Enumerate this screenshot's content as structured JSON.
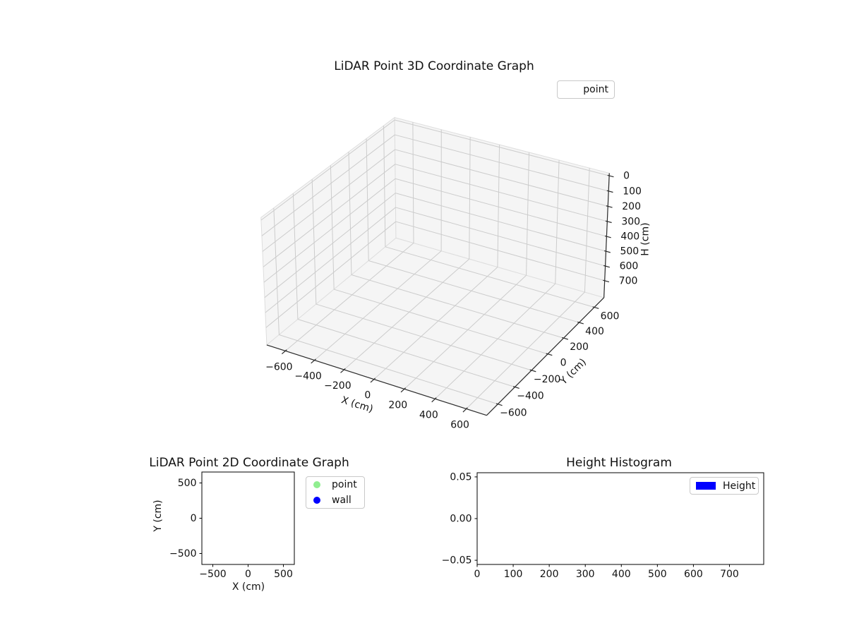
{
  "figure": {
    "background": "#ffffff"
  },
  "chart_data": [
    {
      "id": "lidar3d",
      "type": "scatter3d",
      "title": "LiDAR Point 3D Coordinate Graph",
      "xlabel": "X (cm)",
      "ylabel": "Y (cm)",
      "zlabel": "H (cm)",
      "xlim": [
        -700,
        700
      ],
      "ylim": [
        -700,
        700
      ],
      "zlim": [
        0,
        800
      ],
      "zaxis_inverted": true,
      "xticks": [
        -600,
        -400,
        -200,
        0,
        200,
        400,
        600
      ],
      "yticks": [
        -600,
        -400,
        -200,
        0,
        200,
        400,
        600
      ],
      "zticks": [
        0,
        100,
        200,
        300,
        400,
        500,
        600,
        700
      ],
      "grid": true,
      "pane_color": "#f5f5f5",
      "grid_color": "#cccccc",
      "legend": {
        "position": "upper right outside",
        "entries": [
          {
            "label": "point",
            "marker": "none"
          }
        ]
      },
      "series": [
        {
          "name": "point",
          "points": []
        }
      ]
    },
    {
      "id": "lidar2d",
      "type": "scatter",
      "title": "LiDAR Point 2D Coordinate Graph",
      "xlabel": "X (cm)",
      "ylabel": "Y (cm)",
      "xlim": [
        -655,
        655
      ],
      "ylim": [
        -655,
        655
      ],
      "xticks": [
        -500,
        0,
        500
      ],
      "yticks": [
        -500,
        0,
        500
      ],
      "grid": false,
      "legend": {
        "position": "right of axes",
        "entries": [
          {
            "label": "point",
            "color": "#90ee90",
            "marker": "circle"
          },
          {
            "label": "wall",
            "color": "#0000ff",
            "marker": "circle"
          }
        ]
      },
      "series": [
        {
          "name": "point",
          "color": "#90ee90",
          "points": []
        },
        {
          "name": "wall",
          "color": "#0000ff",
          "points": []
        }
      ]
    },
    {
      "id": "height-hist",
      "type": "histogram",
      "title": "Height Histogram",
      "xlabel": "",
      "ylabel": "",
      "xlim": [
        0,
        795
      ],
      "ylim": [
        -0.055,
        0.055
      ],
      "xticks": [
        0,
        100,
        200,
        300,
        400,
        500,
        600,
        700
      ],
      "yticks": [
        0.05,
        0.0,
        -0.05
      ],
      "ytick_decimals": 2,
      "grid": false,
      "legend": {
        "position": "upper right",
        "entries": [
          {
            "label": "Height",
            "color": "#0000ff",
            "marker": "rect"
          }
        ]
      },
      "values": []
    }
  ]
}
